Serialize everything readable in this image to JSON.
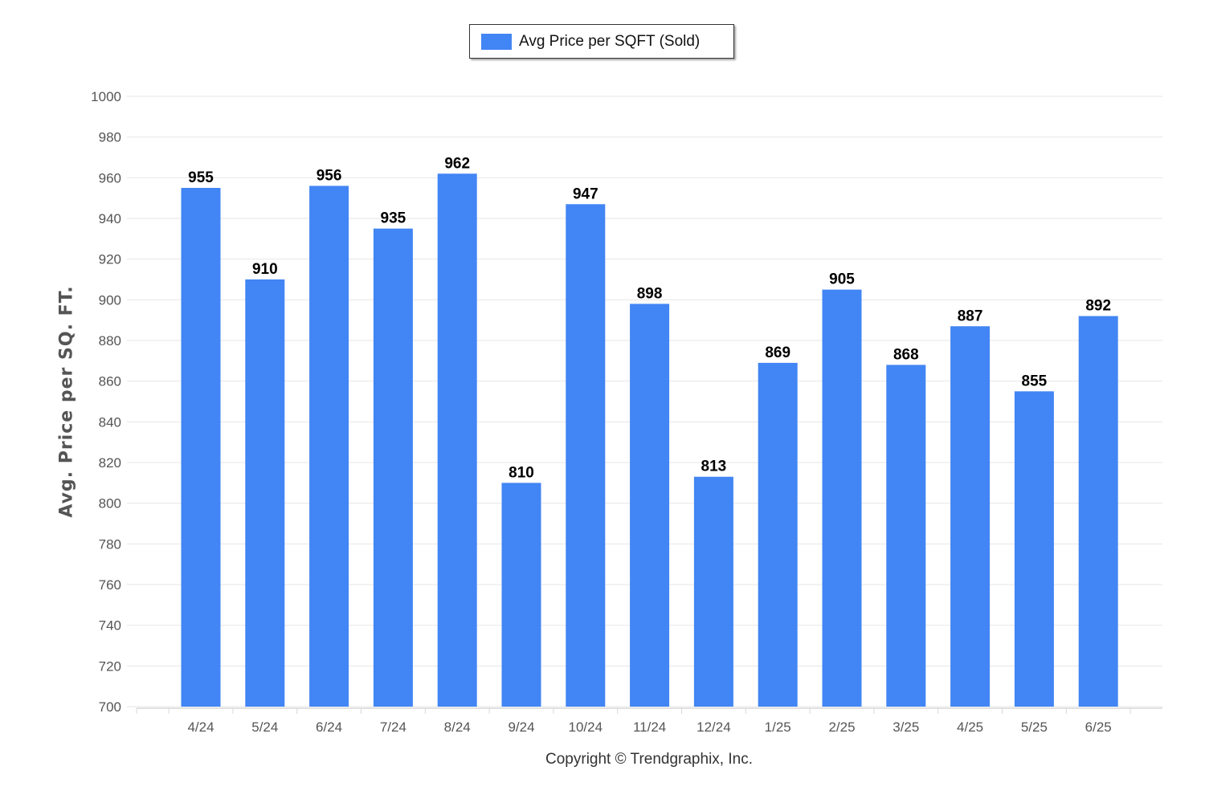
{
  "legend": {
    "label": "Avg Price per SQFT (Sold)",
    "color": "#4285f4"
  },
  "footer": {
    "copyright": "Copyright © Trendgraphix, Inc."
  },
  "chart_data": {
    "type": "bar",
    "title": "",
    "xlabel": "",
    "ylabel": "Avg. Price per SQ. FT.",
    "categories": [
      "4/24",
      "5/24",
      "6/24",
      "7/24",
      "8/24",
      "9/24",
      "10/24",
      "11/24",
      "12/24",
      "1/25",
      "2/25",
      "3/25",
      "4/25",
      "5/25",
      "6/25"
    ],
    "series": [
      {
        "name": "Avg Price per SQFT (Sold)",
        "values": [
          955,
          910,
          956,
          935,
          962,
          810,
          947,
          898,
          813,
          869,
          905,
          868,
          887,
          855,
          892
        ],
        "color": "#4285f4"
      }
    ],
    "ylim": [
      700,
      1000
    ],
    "yticks": [
      700,
      720,
      740,
      760,
      780,
      800,
      820,
      840,
      860,
      880,
      900,
      920,
      940,
      960,
      980,
      1000
    ],
    "grid": true,
    "legend_position": "top-center",
    "data_labels": true
  }
}
